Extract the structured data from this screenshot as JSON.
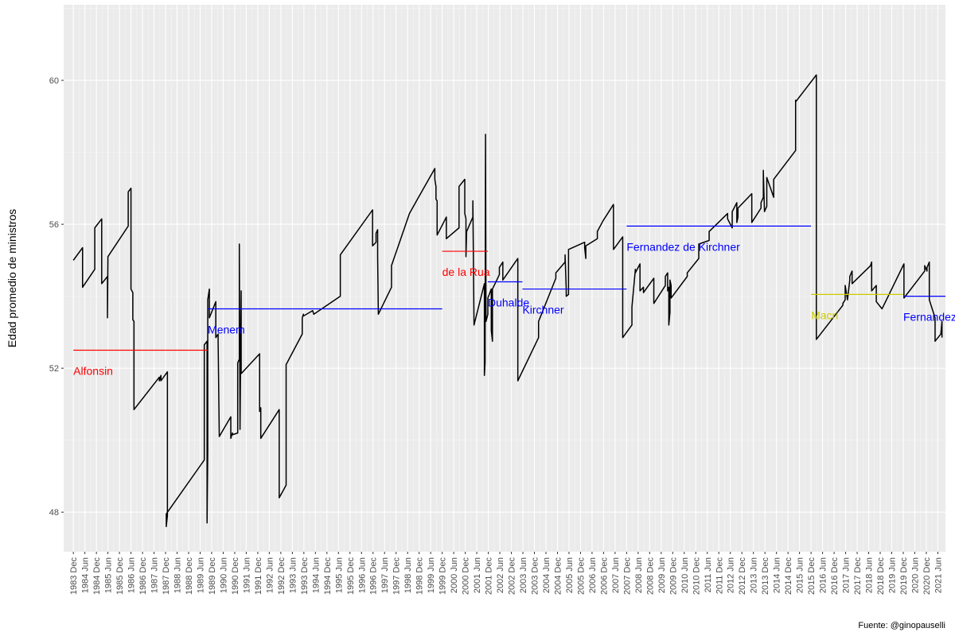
{
  "chart_data": {
    "type": "line",
    "title": "",
    "xlabel": "",
    "ylabel": "Edad promedio de ministros",
    "caption": "Fuente: @ginopauselli",
    "ylim": [
      46.9,
      62.1
    ],
    "yticks": [
      48,
      52,
      56,
      60
    ],
    "ytick_labels": [
      "48",
      "52",
      "56",
      "60"
    ],
    "xlim": [
      1983.5,
      2021.75
    ],
    "xtick_labels": [
      "1983 Dec",
      "1984 Jun",
      "1984 Dec",
      "1985 Jun",
      "1985 Dec",
      "1986 Jun",
      "1986 Dec",
      "1987 Jun",
      "1987 Dec",
      "1988 Jun",
      "1988 Dec",
      "1989 Jun",
      "1989 Dec",
      "1990 Jun",
      "1990 Dec",
      "1991 Jun",
      "1991 Dec",
      "1992 Jun",
      "1992 Dec",
      "1993 Jun",
      "1993 Dec",
      "1994 Jun",
      "1994 Dec",
      "1995 Jun",
      "1995 Dec",
      "1996 Jun",
      "1996 Dec",
      "1997 Jun",
      "1997 Dec",
      "1998 Jun",
      "1998 Dec",
      "1999 Jun",
      "1999 Dec",
      "2000 Jun",
      "2000 Dec",
      "2001 Jun",
      "2001 Dec",
      "2002 Jun",
      "2002 Dec",
      "2003 Jun",
      "2003 Dec",
      "2004 Jun",
      "2004 Dec",
      "2005 Jun",
      "2005 Dec",
      "2006 Jun",
      "2006 Dec",
      "2007 Jun",
      "2007 Dec",
      "2008 Jun",
      "2008 Dec",
      "2009 Jun",
      "2009 Dec",
      "2010 Jun",
      "2010 Dec",
      "2011 Jun",
      "2011 Dec",
      "2012 Jun",
      "2012 Dec",
      "2013 Jun",
      "2013 Dec",
      "2014 Jun",
      "2014 Dec",
      "2015 Jun",
      "2015 Dec",
      "2016 Jun",
      "2016 Dec",
      "2017 Jun",
      "2017 Dec",
      "2018 Jun",
      "2018 Dec",
      "2019 Jun",
      "2019 Dec",
      "2020 Jun",
      "2020 Dec",
      "2021 Jun"
    ],
    "grid": true,
    "background": "#ebebeb",
    "series": [
      {
        "color": "#000000",
        "points": [
          [
            1983.92,
            55.0
          ],
          [
            1984.32,
            55.35
          ],
          [
            1984.32,
            54.25
          ],
          [
            1984.85,
            54.75
          ],
          [
            1984.85,
            55.9
          ],
          [
            1985.15,
            56.15
          ],
          [
            1985.15,
            54.35
          ],
          [
            1985.4,
            54.55
          ],
          [
            1985.4,
            53.4
          ],
          [
            1985.42,
            55.1
          ],
          [
            1986.3,
            55.95
          ],
          [
            1986.3,
            56.9
          ],
          [
            1986.42,
            57.0
          ],
          [
            1986.42,
            54.2
          ],
          [
            1986.5,
            54.1
          ],
          [
            1986.5,
            53.35
          ],
          [
            1986.55,
            53.3
          ],
          [
            1986.55,
            50.85
          ],
          [
            1987.65,
            51.75
          ],
          [
            1987.65,
            51.65
          ],
          [
            1987.72,
            51.8
          ],
          [
            1987.72,
            51.65
          ],
          [
            1988.0,
            51.9
          ],
          [
            1988.0,
            47.9
          ],
          [
            1987.95,
            47.6
          ],
          [
            1987.95,
            47.95
          ],
          [
            1989.6,
            49.45
          ],
          [
            1989.6,
            52.65
          ],
          [
            1989.72,
            52.75
          ],
          [
            1989.72,
            47.7
          ],
          [
            1989.75,
            49.7
          ],
          [
            1989.75,
            53.9
          ],
          [
            1989.82,
            54.2
          ],
          [
            1989.82,
            53.4
          ],
          [
            1990.1,
            53.85
          ],
          [
            1990.1,
            52.85
          ],
          [
            1990.2,
            52.95
          ],
          [
            1990.2,
            52.75
          ],
          [
            1990.25,
            50.1
          ],
          [
            1990.75,
            50.65
          ],
          [
            1990.75,
            50.05
          ],
          [
            1990.82,
            50.2
          ],
          [
            1990.82,
            50.15
          ],
          [
            1991.05,
            50.2
          ],
          [
            1991.05,
            52.15
          ],
          [
            1991.12,
            52.25
          ],
          [
            1991.12,
            55.45
          ],
          [
            1991.15,
            50.3
          ],
          [
            1991.2,
            54.15
          ],
          [
            1991.2,
            51.85
          ],
          [
            1992.0,
            52.4
          ],
          [
            1992.0,
            50.8
          ],
          [
            1992.05,
            50.9
          ],
          [
            1992.05,
            50.05
          ],
          [
            1992.85,
            50.85
          ],
          [
            1992.85,
            48.4
          ],
          [
            1993.15,
            48.75
          ],
          [
            1993.15,
            52.1
          ],
          [
            1993.85,
            52.95
          ],
          [
            1993.85,
            53.4
          ],
          [
            1993.9,
            53.5
          ],
          [
            1993.9,
            53.45
          ],
          [
            1994.3,
            53.6
          ],
          [
            1994.35,
            53.5
          ],
          [
            1995.5,
            54.0
          ],
          [
            1995.5,
            55.15
          ],
          [
            1996.9,
            56.4
          ],
          [
            1996.9,
            55.4
          ],
          [
            1997.05,
            55.5
          ],
          [
            1997.05,
            55.75
          ],
          [
            1997.12,
            55.85
          ],
          [
            1997.12,
            55.1
          ],
          [
            1997.15,
            53.5
          ],
          [
            1997.72,
            54.25
          ],
          [
            1997.72,
            54.85
          ],
          [
            1998.5,
            56.3
          ],
          [
            1998.85,
            56.7
          ],
          [
            1999.6,
            57.55
          ],
          [
            1999.6,
            57.25
          ],
          [
            1999.65,
            57.05
          ],
          [
            1999.65,
            56.7
          ],
          [
            1999.7,
            56.65
          ],
          [
            1999.7,
            55.7
          ],
          [
            2000.1,
            56.2
          ],
          [
            2000.1,
            55.6
          ],
          [
            2000.65,
            55.9
          ],
          [
            2000.65,
            57.05
          ],
          [
            2000.9,
            57.25
          ],
          [
            2000.9,
            56.3
          ],
          [
            2000.95,
            56.15
          ],
          [
            2000.95,
            55.1
          ],
          [
            2000.98,
            55.8
          ],
          [
            2001.25,
            56.2
          ],
          [
            2001.25,
            56.65
          ],
          [
            2001.3,
            53.2
          ],
          [
            2001.75,
            54.35
          ],
          [
            2001.75,
            51.8
          ],
          [
            2001.78,
            52.15
          ],
          [
            2001.8,
            58.5
          ],
          [
            2001.82,
            53.3
          ],
          [
            2001.9,
            53.5
          ],
          [
            2001.9,
            53.95
          ],
          [
            2002.05,
            54.2
          ],
          [
            2002.05,
            53.05
          ],
          [
            2002.1,
            52.75
          ],
          [
            2002.1,
            54.2
          ],
          [
            2002.4,
            54.6
          ],
          [
            2002.4,
            54.8
          ],
          [
            2002.55,
            54.95
          ],
          [
            2002.55,
            54.45
          ],
          [
            2003.2,
            55.05
          ],
          [
            2003.2,
            51.65
          ],
          [
            2004.1,
            52.85
          ],
          [
            2004.1,
            53.3
          ],
          [
            2004.85,
            54.5
          ],
          [
            2004.85,
            54.65
          ],
          [
            2005.25,
            54.95
          ],
          [
            2005.25,
            55.15
          ],
          [
            2005.3,
            54.2
          ],
          [
            2005.3,
            54.0
          ],
          [
            2005.4,
            54.05
          ],
          [
            2005.4,
            55.3
          ],
          [
            2006.1,
            55.5
          ],
          [
            2006.1,
            55.35
          ],
          [
            2006.15,
            55.05
          ],
          [
            2006.15,
            55.4
          ],
          [
            2006.65,
            55.6
          ],
          [
            2006.65,
            55.8
          ],
          [
            2006.9,
            56.1
          ],
          [
            2007.35,
            56.55
          ],
          [
            2007.35,
            55.3
          ],
          [
            2007.75,
            55.65
          ],
          [
            2007.75,
            55.35
          ],
          [
            2007.75,
            52.85
          ],
          [
            2008.15,
            53.2
          ],
          [
            2008.15,
            53.7
          ],
          [
            2008.3,
            54.75
          ],
          [
            2008.3,
            54.65
          ],
          [
            2008.5,
            54.9
          ],
          [
            2008.5,
            54.15
          ],
          [
            2008.65,
            54.25
          ],
          [
            2008.65,
            54.1
          ],
          [
            2009.1,
            54.5
          ],
          [
            2009.1,
            53.8
          ],
          [
            2009.6,
            54.3
          ],
          [
            2009.6,
            54.55
          ],
          [
            2009.7,
            54.65
          ],
          [
            2009.7,
            54.15
          ],
          [
            2009.75,
            54.25
          ],
          [
            2009.75,
            53.2
          ],
          [
            2009.8,
            53.55
          ],
          [
            2009.8,
            54.45
          ],
          [
            2009.85,
            54.3
          ],
          [
            2009.85,
            53.95
          ],
          [
            2010.55,
            54.55
          ],
          [
            2010.55,
            54.65
          ],
          [
            2011.05,
            55.05
          ],
          [
            2011.05,
            55.45
          ],
          [
            2011.5,
            55.55
          ],
          [
            2011.5,
            55.8
          ],
          [
            2012.3,
            56.3
          ],
          [
            2012.3,
            56.15
          ],
          [
            2012.5,
            55.9
          ],
          [
            2012.5,
            56.35
          ],
          [
            2012.7,
            56.6
          ],
          [
            2012.7,
            56.05
          ],
          [
            2012.75,
            56.2
          ],
          [
            2012.75,
            56.45
          ],
          [
            2013.35,
            56.85
          ],
          [
            2013.35,
            56.05
          ],
          [
            2013.75,
            56.45
          ],
          [
            2013.75,
            56.6
          ],
          [
            2013.85,
            56.75
          ],
          [
            2013.85,
            57.5
          ],
          [
            2013.9,
            56.35
          ],
          [
            2014.0,
            56.5
          ],
          [
            2014.0,
            57.3
          ],
          [
            2014.3,
            56.75
          ],
          [
            2014.3,
            57.25
          ],
          [
            2015.25,
            58.05
          ],
          [
            2015.25,
            59.45
          ],
          [
            2015.25,
            59.4
          ],
          [
            2016.15,
            60.15
          ],
          [
            2016.15,
            52.8
          ],
          [
            2017.3,
            53.75
          ],
          [
            2017.3,
            53.8
          ],
          [
            2017.4,
            53.9
          ],
          [
            2017.4,
            54.3
          ],
          [
            2017.5,
            53.9
          ],
          [
            2017.6,
            54.45
          ],
          [
            2017.6,
            54.55
          ],
          [
            2017.7,
            54.7
          ],
          [
            2017.7,
            54.35
          ],
          [
            2018.5,
            54.85
          ],
          [
            2018.55,
            54.95
          ],
          [
            2018.55,
            54.15
          ],
          [
            2018.75,
            54.3
          ],
          [
            2018.75,
            53.85
          ],
          [
            2019.0,
            53.65
          ],
          [
            2019.95,
            54.9
          ],
          [
            2019.95,
            53.95
          ],
          [
            2020.85,
            54.7
          ],
          [
            2020.85,
            54.85
          ],
          [
            2020.95,
            54.7
          ],
          [
            2020.95,
            54.8
          ],
          [
            2021.05,
            54.95
          ],
          [
            2021.05,
            53.9
          ],
          [
            2021.3,
            53.4
          ],
          [
            2021.3,
            52.75
          ],
          [
            2021.55,
            52.95
          ],
          [
            2021.6,
            53.3
          ],
          [
            2021.6,
            52.85
          ]
        ]
      }
    ],
    "presidents": [
      {
        "name": "Alfonsin",
        "color": "#ff0000",
        "start": 1983.92,
        "end": 1989.75,
        "mean": 52.5
      },
      {
        "name": "Menem",
        "color": "#0000ff",
        "start": 1989.75,
        "end": 1999.92,
        "mean": 53.65
      },
      {
        "name": "de la Rua",
        "color": "#ff0000",
        "start": 1999.92,
        "end": 2001.9,
        "mean": 55.25
      },
      {
        "name": "Duhalde",
        "color": "#0000ff",
        "start": 2001.9,
        "end": 2003.4,
        "mean": 54.4
      },
      {
        "name": "Kirchner",
        "color": "#0000ff",
        "start": 2003.4,
        "end": 2007.92,
        "mean": 54.2
      },
      {
        "name": "Fernandez de Kirchner",
        "color": "#0000ff",
        "start": 2007.92,
        "end": 2015.92,
        "mean": 55.95
      },
      {
        "name": "Macri",
        "color": "#cccc00",
        "start": 2015.92,
        "end": 2019.92,
        "mean": 54.05
      },
      {
        "name": "Fernandez",
        "color": "#0000ff",
        "start": 2019.92,
        "end": 2021.75,
        "mean": 54.0
      }
    ]
  }
}
